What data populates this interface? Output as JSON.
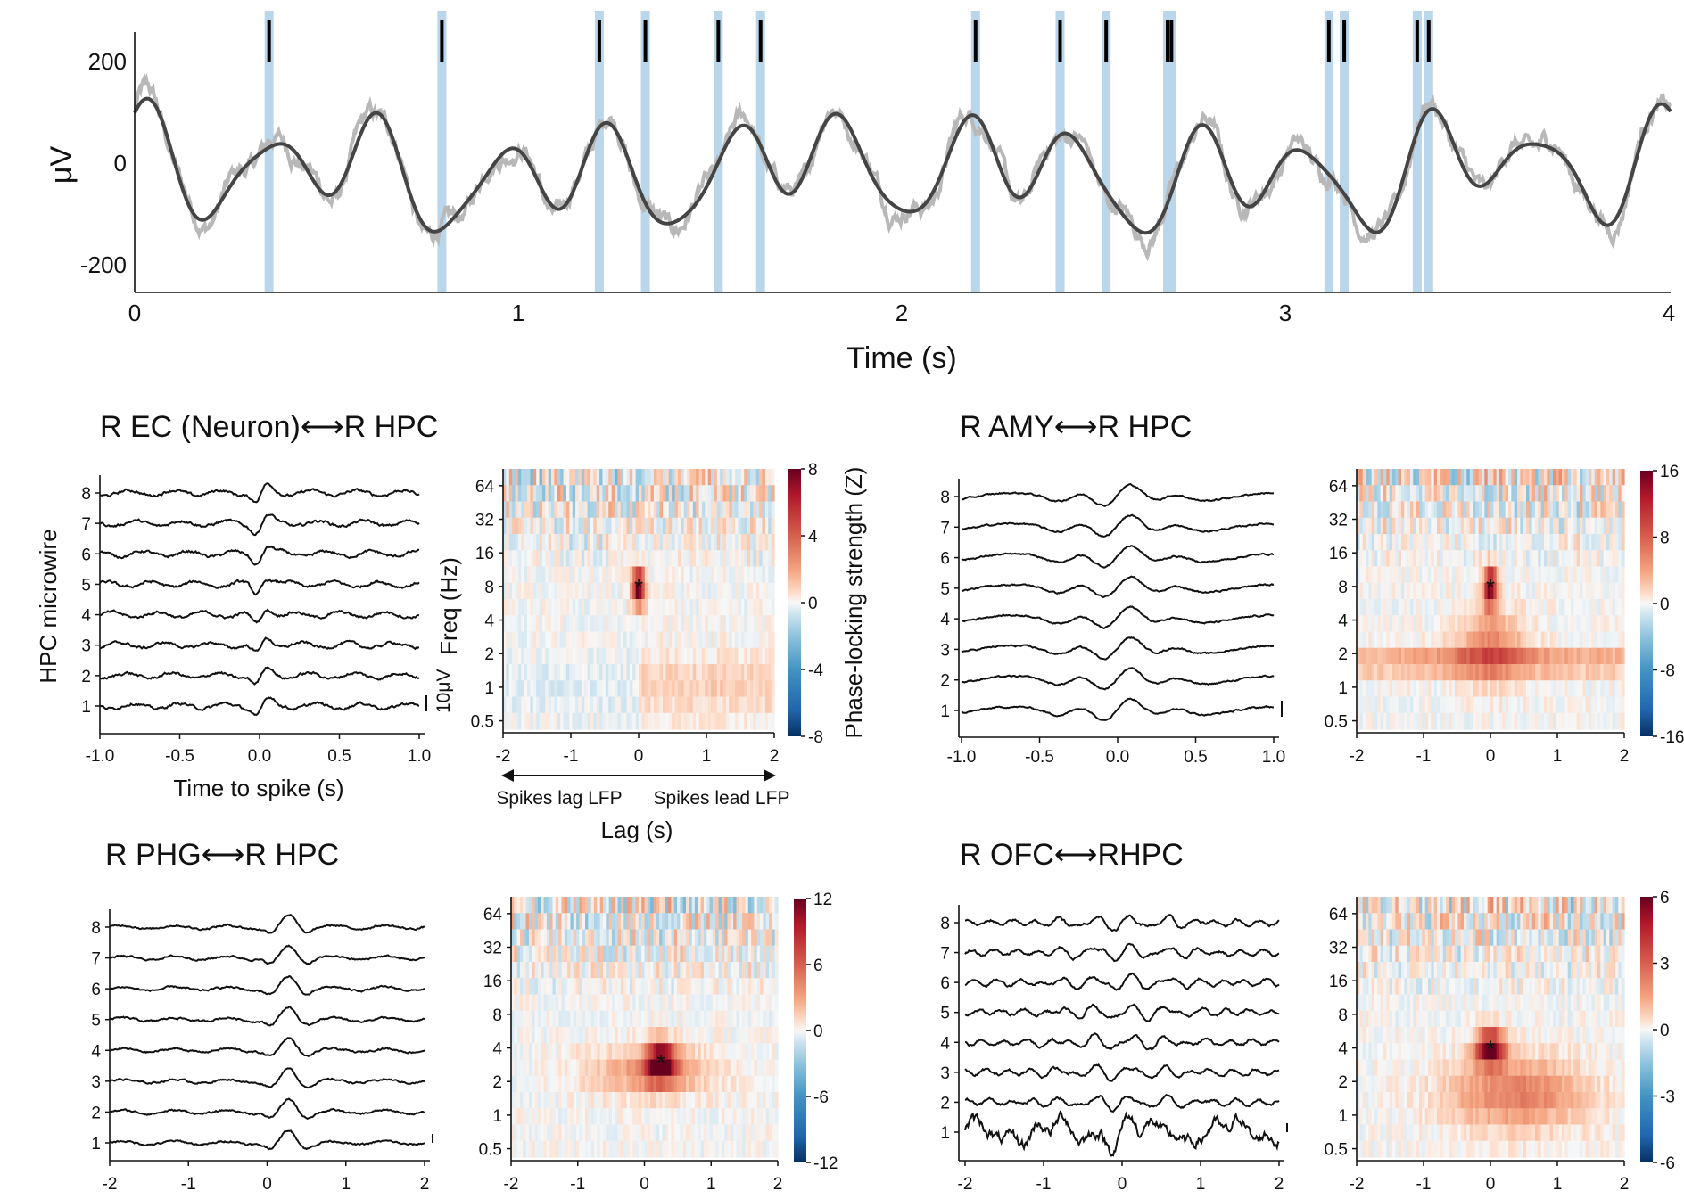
{
  "chart_data": [
    {
      "type": "line",
      "panel": "top",
      "ylabel": "μV",
      "xlabel": "Time (s)",
      "xlim": [
        0,
        4
      ],
      "ylim": [
        -250,
        290
      ],
      "xticks": [
        "0",
        "1",
        "2",
        "3",
        "4"
      ],
      "yticks": [
        "200",
        "0",
        "-200"
      ],
      "series": [],
      "spike_times": [
        0.35,
        0.8,
        1.21,
        1.33,
        1.52,
        1.63,
        2.19,
        2.41,
        2.53,
        2.69,
        2.7,
        3.11,
        3.15,
        3.34,
        3.37
      ],
      "colors": {
        "raw": "#b8b8b8",
        "filtered": "#444444",
        "spike_band": "#b9d6ea",
        "spike": "#000000"
      }
    },
    {
      "type": "line",
      "panel": "a-traces",
      "title": "R EC (Neuron)⟷R HPC",
      "ylabel": "HPC microwire",
      "xlabel": "Time to spike (s)",
      "xlim": [
        -1,
        1
      ],
      "xticks": [
        "-1.0",
        "-0.5",
        "0.0",
        "0.5",
        "1.0"
      ],
      "channels": [
        "8",
        "7",
        "6",
        "5",
        "4",
        "3",
        "2",
        "1"
      ],
      "scale_bar": "10μV"
    },
    {
      "type": "heatmap",
      "panel": "a-heatmap",
      "ylabel": "Freq (Hz)",
      "xlabel": "Lag (s)",
      "xticks": [
        "-2",
        "-1",
        "0",
        "1",
        "2"
      ],
      "yticks": [
        "64",
        "32",
        "16",
        "8",
        "4",
        "2",
        "1",
        "0.5"
      ],
      "peak": {
        "lag": 0,
        "freq": 8,
        "marker": "*"
      },
      "annotation_left": "Spikes lag LFP",
      "annotation_right": "Spikes lead LFP",
      "colorbar": {
        "label": "Phase-locking strength (Z)",
        "ticks": [
          "8",
          "4",
          "0",
          "-4",
          "-8"
        ],
        "range": [
          -8,
          8
        ]
      }
    },
    {
      "type": "line",
      "panel": "b-traces",
      "title": "R AMY⟷R HPC",
      "xlim": [
        -1,
        1
      ],
      "xticks": [
        "-1.0",
        "-0.5",
        "0.0",
        "0.5",
        "1.0"
      ],
      "channels": [
        "8",
        "7",
        "6",
        "5",
        "4",
        "3",
        "2",
        "1"
      ]
    },
    {
      "type": "heatmap",
      "panel": "b-heatmap",
      "xticks": [
        "-2",
        "-1",
        "0",
        "1",
        "2"
      ],
      "yticks": [
        "64",
        "32",
        "16",
        "8",
        "4",
        "2",
        "1",
        "0.5"
      ],
      "peak": {
        "lag": 0,
        "freq": 8,
        "marker": "*"
      },
      "colorbar": {
        "ticks": [
          "16",
          "8",
          "0",
          "-8",
          "-16"
        ],
        "range": [
          -16,
          16
        ]
      }
    },
    {
      "type": "line",
      "panel": "c-traces",
      "title": "R PHG⟷R HPC",
      "xlim": [
        -2,
        2
      ],
      "xticks": [
        "-2",
        "-1",
        "0",
        "1",
        "2"
      ],
      "channels": [
        "8",
        "7",
        "6",
        "5",
        "4",
        "3",
        "2",
        "1"
      ]
    },
    {
      "type": "heatmap",
      "panel": "c-heatmap",
      "xticks": [
        "-2",
        "-1",
        "0",
        "1",
        "2"
      ],
      "yticks": [
        "64",
        "32",
        "16",
        "8",
        "4",
        "2",
        "1",
        "0.5"
      ],
      "peak": {
        "lag": 0.25,
        "freq": 3,
        "marker": "*"
      },
      "colorbar": {
        "ticks": [
          "12",
          "6",
          "0",
          "-6",
          "-12"
        ],
        "range": [
          -12,
          12
        ]
      }
    },
    {
      "type": "line",
      "panel": "d-traces",
      "title": "R OFC⟷RHPC",
      "xlim": [
        -2,
        2
      ],
      "xticks": [
        "-2",
        "-1",
        "0",
        "1",
        "2"
      ],
      "channels": [
        "8",
        "7",
        "6",
        "5",
        "4",
        "3",
        "2",
        "1"
      ]
    },
    {
      "type": "heatmap",
      "panel": "d-heatmap",
      "xticks": [
        "-2",
        "-1",
        "0",
        "1",
        "2"
      ],
      "yticks": [
        "64",
        "32",
        "16",
        "8",
        "4",
        "2",
        "1",
        "0.5"
      ],
      "peak": {
        "lag": 0,
        "freq": 4,
        "marker": "*"
      },
      "colorbar": {
        "ticks": [
          "6",
          "3",
          "0",
          "-3",
          "-6"
        ],
        "range": [
          -6,
          6
        ]
      }
    }
  ]
}
